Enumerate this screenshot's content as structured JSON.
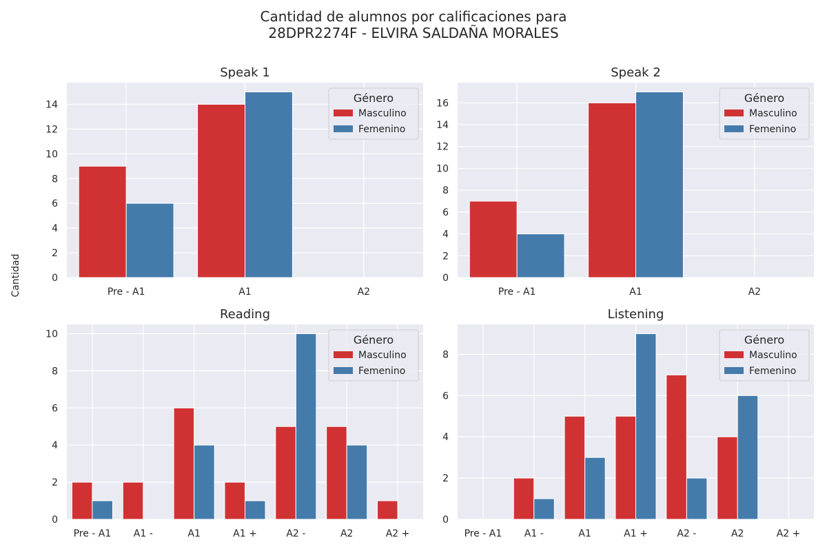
{
  "title": "Cantidad de alumnos por calificaciones para\n28DPR2274F - ELVIRA SALDAÑA MORALES",
  "ylabel": "Cantidad",
  "colors": {
    "background": "#eaeaf2",
    "grid": "#ffffff",
    "masculino": "#d03234",
    "femenino": "#457bab"
  },
  "chart_data": [
    {
      "type": "bar",
      "title": "Speak 1",
      "categories": [
        "Pre - A1",
        "A1",
        "A2"
      ],
      "series": [
        {
          "name": "Masculino",
          "values": [
            9,
            14,
            0
          ]
        },
        {
          "name": "Femenino",
          "values": [
            6,
            15,
            0
          ]
        }
      ],
      "ylim": [
        0,
        15.75
      ],
      "yticks": [
        0,
        2,
        4,
        6,
        8,
        10,
        12,
        14
      ],
      "legend_title": "Género",
      "legend_position": "top-right",
      "grid": true
    },
    {
      "type": "bar",
      "title": "Speak 2",
      "categories": [
        "Pre - A1",
        "A1",
        "A2"
      ],
      "series": [
        {
          "name": "Masculino",
          "values": [
            7,
            16,
            0
          ]
        },
        {
          "name": "Femenino",
          "values": [
            4,
            17,
            0
          ]
        }
      ],
      "ylim": [
        0,
        17.85
      ],
      "yticks": [
        0,
        2,
        4,
        6,
        8,
        10,
        12,
        14,
        16
      ],
      "legend_title": "Género",
      "legend_position": "top-right",
      "grid": true
    },
    {
      "type": "bar",
      "title": "Reading",
      "categories": [
        "Pre - A1",
        "A1 -",
        "A1",
        "A1 +",
        "A2 -",
        "A2",
        "A2 +"
      ],
      "series": [
        {
          "name": "Masculino",
          "values": [
            2,
            2,
            6,
            2,
            5,
            5,
            1
          ]
        },
        {
          "name": "Femenino",
          "values": [
            1,
            0,
            4,
            1,
            10,
            4,
            0
          ]
        }
      ],
      "ylim": [
        0,
        10.5
      ],
      "yticks": [
        0,
        2,
        4,
        6,
        8,
        10
      ],
      "legend_title": "Género",
      "legend_position": "top-right",
      "grid": true
    },
    {
      "type": "bar",
      "title": "Listening",
      "categories": [
        "Pre - A1",
        "A1 -",
        "A1",
        "A1 +",
        "A2 -",
        "A2",
        "A2 +"
      ],
      "series": [
        {
          "name": "Masculino",
          "values": [
            0,
            2,
            5,
            5,
            7,
            4,
            0
          ]
        },
        {
          "name": "Femenino",
          "values": [
            0,
            1,
            3,
            9,
            2,
            6,
            0
          ]
        }
      ],
      "ylim": [
        0,
        9.45
      ],
      "yticks": [
        0,
        2,
        4,
        6,
        8
      ],
      "legend_title": "Género",
      "legend_position": "top-right",
      "grid": true
    }
  ]
}
